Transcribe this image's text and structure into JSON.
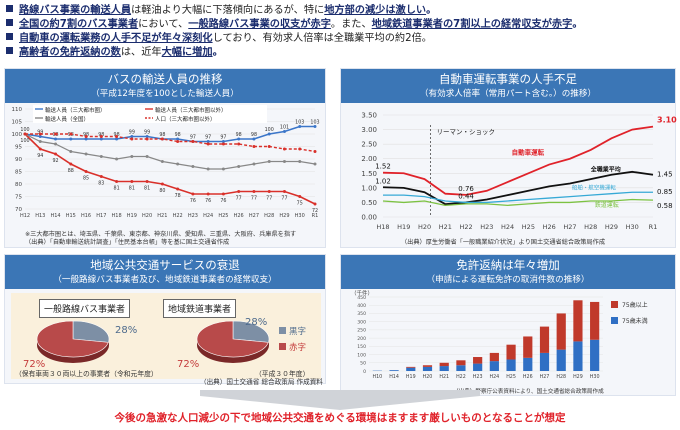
{
  "bullets": [
    {
      "parts": [
        "路線バス事業の輸送人員",
        "は軽油より大幅に下落傾向にあるが、特に",
        "地方部の減少は激しい",
        "。"
      ]
    },
    {
      "parts": [
        "全国の約7割のバス事業者",
        "において、",
        "一般路線バス事業の収支が赤字",
        "。また、",
        "地域鉄道事業者の7割以上の経常収支が赤字",
        "。"
      ]
    },
    {
      "parts": [
        "自動車の運転業務の人手不足が年々深刻化",
        "しており、有効求人倍率は全職業平均の約2倍。"
      ]
    },
    {
      "parts": [
        "高齢者の免許返納の数",
        "は、近年",
        "大幅に増加",
        "。"
      ]
    }
  ],
  "panel_bus": {
    "title": "バスの輸送人員の推移",
    "subtitle": "（平成12年度を100とした輸送人員）",
    "legend": [
      "輸送人員（三大都市圏）",
      "輸送人員（三大都市圏以外）",
      "輸送人員（全国）",
      "人口（三大都市圏以外）"
    ],
    "note": "※三大都市圏とは、埼玉県、千葉県、東京都、神奈川県、愛知県、三重県、大阪府、兵庫県を指す",
    "source": "（出典）「自動車輸送統計調査」「住民基本台帳」等を基に国土交通省作成"
  },
  "panel_driver": {
    "title": "自動車運転事業の人手不足",
    "subtitle": "（有効求人倍率（常用パート含む。）の推移）",
    "annotation": "リーマン・ショック",
    "labels": [
      "自動車運転",
      "全職業平均",
      "船舶・航空機運転",
      "鉄道運転"
    ],
    "source": "（出典）厚生労働省「一般職業紹介状況」より国土交通省総合政策局作成"
  },
  "panel_transit": {
    "title": "地域公共交通サービスの衰退",
    "subtitle": "（一般路線バス事業者及び、地域鉄道事業者の経常収支）",
    "pie1_label": "一般路線バス事業者",
    "pie2_label": "地域鉄道事業者",
    "pie1_note": "（保有車両３０両以上の事業者（令和元年度）",
    "pie2_note": "（平成３０年度）",
    "legend": [
      "黒字",
      "赤字"
    ],
    "pct_black": "28%",
    "pct_red": "72%",
    "source": "（出典）国土交通省 総合政策局 作成資料"
  },
  "panel_license": {
    "title": "免許返納は年々増加",
    "subtitle": "（申請による運転免許の取消件数の推移）",
    "unit": "（千件）",
    "legend": [
      "75歳以上",
      "75歳未満"
    ],
    "source": "（出典）警察庁公表資料により、国土交通省総合政策局作成"
  },
  "bottom_message": "今後の急激な人口減少の下で地域公共交通をめぐる環境はますます厳しいものとなることが想定",
  "chart_data": [
    {
      "type": "line",
      "title": "バスの輸送人員の推移",
      "categories": [
        "H12",
        "H13",
        "H14",
        "H15",
        "H16",
        "H17",
        "H18",
        "H19",
        "H20",
        "H21",
        "H22",
        "H23",
        "H24",
        "H25",
        "H26",
        "H27",
        "H28",
        "H29",
        "H30",
        "R1"
      ],
      "series": [
        {
          "name": "輸送人員（三大都市圏）",
          "values": [
            100,
            99,
            98,
            98,
            98,
            98,
            98,
            99,
            99,
            98,
            98,
            97,
            97,
            97,
            98,
            98,
            100,
            101,
            103,
            103
          ],
          "color": "#3b76c9"
        },
        {
          "name": "輸送人員（三大都市圏以外）",
          "values": [
            100,
            94,
            92,
            88,
            85,
            83,
            81,
            81,
            81,
            80,
            78,
            76,
            76,
            76,
            77,
            77,
            77,
            77,
            75,
            72
          ],
          "color": "#d9302a"
        },
        {
          "name": "輸送人員（全国）",
          "values": [
            100,
            97,
            96,
            93,
            92,
            91,
            90,
            91,
            91,
            89,
            88,
            87,
            86,
            86,
            87,
            88,
            89,
            89,
            89,
            88
          ],
          "color": "#888888"
        },
        {
          "name": "人口（三大都市圏以外）",
          "values": [
            100,
            100,
            100,
            100,
            99,
            99,
            99,
            98,
            98,
            98,
            97,
            97,
            96,
            96,
            96,
            95,
            95,
            94,
            94,
            93
          ],
          "color": "#d9302a"
        }
      ],
      "ylim": [
        70,
        110
      ]
    },
    {
      "type": "line",
      "title": "自動車運転事業の人手不足",
      "categories": [
        "H18",
        "H19",
        "H20",
        "H21",
        "H22",
        "H23",
        "H24",
        "H25",
        "H26",
        "H27",
        "H28",
        "H29",
        "H30",
        "R1"
      ],
      "series": [
        {
          "name": "自動車運転",
          "values": [
            1.52,
            1.5,
            1.3,
            0.8,
            0.76,
            0.9,
            1.2,
            1.5,
            1.8,
            2.0,
            2.3,
            2.7,
            3.0,
            3.1
          ],
          "color": "#e0222a"
        },
        {
          "name": "全職業平均",
          "values": [
            1.02,
            1.0,
            0.85,
            0.44,
            0.5,
            0.6,
            0.75,
            0.9,
            1.05,
            1.15,
            1.3,
            1.45,
            1.55,
            1.45
          ],
          "color": "#111111"
        },
        {
          "name": "船舶・航空機運転",
          "values": [
            0.75,
            0.75,
            0.7,
            0.55,
            0.5,
            0.5,
            0.55,
            0.6,
            0.65,
            0.7,
            0.75,
            0.8,
            0.85,
            0.85
          ],
          "color": "#36a9d6"
        },
        {
          "name": "鉄道運転",
          "values": [
            0.55,
            0.5,
            0.55,
            0.4,
            0.45,
            0.45,
            0.4,
            0.45,
            0.5,
            0.5,
            0.55,
            0.55,
            0.6,
            0.58
          ],
          "color": "#7cc242"
        }
      ],
      "ylim": [
        0,
        3.5
      ]
    },
    {
      "type": "bar",
      "title": "免許返納は年々増加",
      "categories": [
        "H10",
        "H14",
        "H19",
        "H20",
        "H21",
        "H22",
        "H23",
        "H24",
        "H25",
        "H26",
        "H27",
        "H28",
        "H29",
        "H30"
      ],
      "series": [
        {
          "name": "75歳以上",
          "values": [
            0,
            0,
            5,
            10,
            20,
            30,
            40,
            50,
            90,
            130,
            160,
            220,
            250,
            230
          ],
          "color": "#c0392b"
        },
        {
          "name": "75歳未満",
          "values": [
            2,
            5,
            20,
            25,
            30,
            35,
            45,
            60,
            70,
            80,
            110,
            130,
            180,
            190
          ],
          "color": "#2f6fc4"
        }
      ],
      "ylim": [
        0,
        450
      ]
    },
    {
      "type": "pie",
      "title": "一般路線バス事業者",
      "categories": [
        "黒字",
        "赤字"
      ],
      "values": [
        28,
        72
      ]
    },
    {
      "type": "pie",
      "title": "地域鉄道事業者",
      "categories": [
        "黒字",
        "赤字"
      ],
      "values": [
        28,
        72
      ]
    }
  ]
}
